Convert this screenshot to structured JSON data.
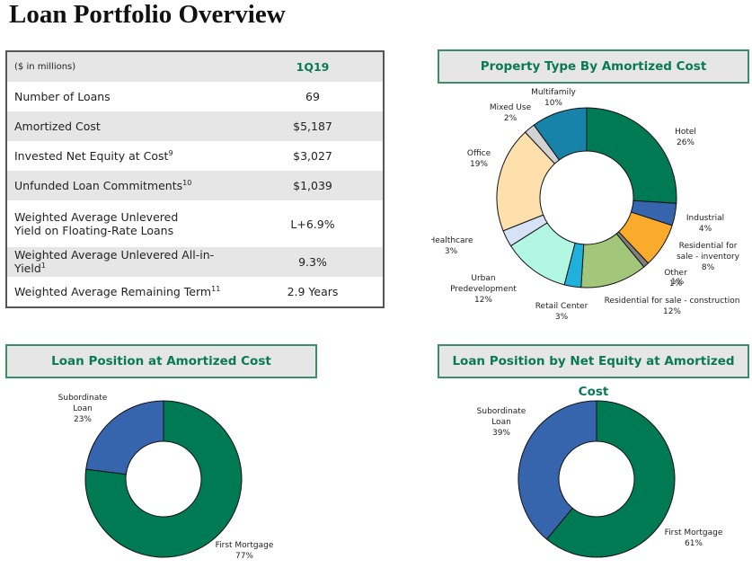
{
  "page_title": "Loan Portfolio Overview",
  "table": {
    "header_label": "($ in millions)",
    "header_period": "1Q19",
    "rows": [
      {
        "label": "Number of Loans",
        "sup": "",
        "value": "69"
      },
      {
        "label": "Amortized Cost",
        "sup": "",
        "value": "$5,187"
      },
      {
        "label": "Invested Net Equity at Cost",
        "sup": "9",
        "value": "$3,027"
      },
      {
        "label": "Unfunded Loan Commitments",
        "sup": "10",
        "value": "$1,039"
      },
      {
        "label": "Weighted Average Unlevered Yield on Floating-Rate Loans",
        "sup": "",
        "value": "L+6.9%"
      },
      {
        "label": "Weighted Average Unlevered All-in-Yield",
        "sup": "1",
        "value": "9.3%"
      },
      {
        "label": "Weighted Average Remaining Term",
        "sup": "11",
        "value": "2.9 Years"
      }
    ]
  },
  "chart_data": [
    {
      "type": "pie",
      "title": "Property Type By Amortized Cost",
      "donut": true,
      "categories": [
        "Hotel",
        "Industrial",
        "Residential for sale - inventory",
        "Other",
        "Residential for sale - construction",
        "Retail Center",
        "Urban Predevelopment",
        "Healthcare",
        "Office",
        "Mixed Use",
        "Multifamily"
      ],
      "values": [
        26,
        4,
        8,
        1,
        12,
        3,
        12,
        3,
        19,
        2,
        10
      ],
      "labels": [
        "26%",
        "4%",
        "8%",
        "1%",
        "12%",
        "3%",
        "12%",
        "3%",
        "19%",
        "2%",
        "10%"
      ],
      "colors": [
        "#007a52",
        "#3664ad",
        "#fbab2c",
        "#7f7f7f",
        "#a3c77a",
        "#1fb0dc",
        "#b2f7e2",
        "#d6e2f5",
        "#fde0ab",
        "#d2d2d2",
        "#1883a8"
      ]
    },
    {
      "type": "pie",
      "title": "Loan Position at Amortized Cost",
      "donut": true,
      "categories": [
        "First Mortgage",
        "Subordinate Loan"
      ],
      "values": [
        77,
        23
      ],
      "labels": [
        "77%",
        "23%"
      ],
      "colors": [
        "#007a52",
        "#3664ad"
      ]
    },
    {
      "type": "pie",
      "title": "Loan Position by Net Equity at Amortized Cost",
      "donut": true,
      "categories": [
        "First Mortgage",
        "Subordinate Loan"
      ],
      "values": [
        61,
        39
      ],
      "labels": [
        "61%",
        "39%"
      ],
      "colors": [
        "#007a52",
        "#3664ad"
      ]
    }
  ]
}
